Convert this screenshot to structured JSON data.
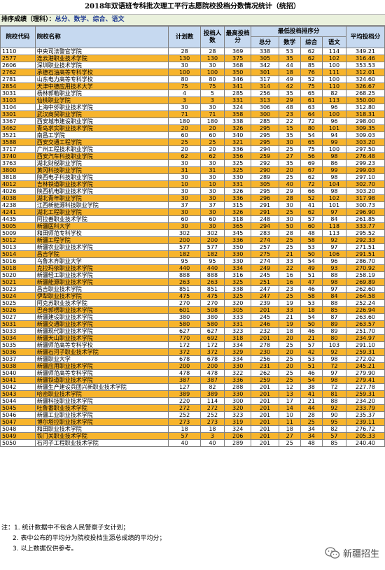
{
  "title": "2018年双语班专科批次理工平行志愿院校投档分数情况统计（统招）",
  "sort_label": "排序成绩（理科）：",
  "sort_value": "总分、数学、综合、语文",
  "headers": {
    "code": "院校代码",
    "name": "院校名称",
    "plan": "计划数",
    "admitted": "投档人数",
    "max": "最高投档分",
    "min_group": "最低投档排序分",
    "total": "总分",
    "math": "数学",
    "comp": "综合",
    "chinese": "语文",
    "avg": "平均投档分"
  },
  "rows": [
    {
      "code": "1110",
      "name": "中央司法警官学院",
      "plan": "28",
      "admitted": "28",
      "max": "369",
      "total": "338",
      "math": "53",
      "comp": "62",
      "chinese": "114",
      "avg": "349.21",
      "hl": false
    },
    {
      "code": "2577",
      "name": "连云港职业技术学院",
      "plan": "130",
      "admitted": "130",
      "max": "375",
      "total": "305",
      "math": "35",
      "comp": "62",
      "chinese": "102",
      "avg": "316.46",
      "hl": true
    },
    {
      "code": "2606",
      "name": "深圳职业技术学院",
      "plan": "30",
      "admitted": "30",
      "max": "368",
      "total": "342",
      "math": "44",
      "comp": "85",
      "chinese": "100",
      "avg": "353.53",
      "hl": false
    },
    {
      "code": "2762",
      "name": "承德石油高等专科学校",
      "plan": "100",
      "admitted": "100",
      "max": "350",
      "total": "301",
      "math": "18",
      "comp": "76",
      "chinese": "111",
      "avg": "312.01",
      "hl": true
    },
    {
      "code": "2781",
      "name": "山东电力高等专科学校",
      "plan": "80",
      "admitted": "80",
      "max": "346",
      "total": "317",
      "math": "49",
      "comp": "52",
      "chinese": "100",
      "avg": "324.60",
      "hl": false
    },
    {
      "code": "2854",
      "name": "天津中德应用技术大学",
      "plan": "75",
      "admitted": "75",
      "max": "341",
      "total": "314",
      "math": "42",
      "comp": "75",
      "chinese": "110",
      "avg": "326.67",
      "hl": true
    },
    {
      "code": "3031",
      "name": "杨林郭勒职业学院",
      "plan": "4",
      "admitted": "5",
      "max": "285",
      "total": "256",
      "math": "35",
      "comp": "65",
      "chinese": "82",
      "avg": "268.25",
      "hl": false
    },
    {
      "code": "3103",
      "name": "仙桃职业学院",
      "plan": "3",
      "admitted": "3",
      "max": "331",
      "total": "313",
      "math": "29",
      "comp": "61",
      "chinese": "113",
      "avg": "350.00",
      "hl": true
    },
    {
      "code": "3104",
      "name": "上海中侨职业技术学院",
      "plan": "30",
      "admitted": "30",
      "max": "324",
      "total": "306",
      "math": "48",
      "comp": "63",
      "chinese": "96",
      "avg": "312.80",
      "hl": false
    },
    {
      "code": "3301",
      "name": "武汉商贸职业学院",
      "plan": "71",
      "admitted": "71",
      "max": "358",
      "total": "300",
      "math": "23",
      "comp": "64",
      "chinese": "100",
      "avg": "318.31",
      "hl": true
    },
    {
      "code": "3367",
      "name": "西安城市建设职业学院",
      "plan": "180",
      "admitted": "180",
      "max": "338",
      "total": "285",
      "math": "22",
      "comp": "72",
      "chinese": "96",
      "avg": "298.00",
      "hl": false
    },
    {
      "code": "3462",
      "name": "青岛求实职业技术学院",
      "plan": "20",
      "admitted": "20",
      "max": "326",
      "total": "295",
      "math": "15",
      "comp": "80",
      "chinese": "101",
      "avg": "309.35",
      "hl": true
    },
    {
      "code": "3521",
      "name": "南昌工学院",
      "plan": "60",
      "admitted": "60",
      "max": "340",
      "total": "295",
      "math": "35",
      "comp": "54",
      "chinese": "94",
      "avg": "309.03",
      "hl": false
    },
    {
      "code": "3588",
      "name": "西安交通工程学院",
      "plan": "25",
      "admitted": "25",
      "max": "321",
      "total": "295",
      "math": "30",
      "comp": "65",
      "chinese": "99",
      "avg": "303.20",
      "hl": true
    },
    {
      "code": "3717",
      "name": "广州工程技术职业学院",
      "plan": "20",
      "admitted": "20",
      "max": "336",
      "total": "294",
      "math": "25",
      "comp": "75",
      "chinese": "100",
      "avg": "297.50",
      "hl": false
    },
    {
      "code": "3740",
      "name": "西安汽车科技职业学院",
      "plan": "62",
      "admitted": "62",
      "max": "356",
      "total": "259",
      "math": "27",
      "comp": "56",
      "chinese": "98",
      "avg": "276.48",
      "hl": true
    },
    {
      "code": "3763",
      "name": "湖北财税职业学院",
      "plan": "30",
      "admitted": "30",
      "max": "325",
      "total": "292",
      "math": "35",
      "comp": "69",
      "chinese": "86",
      "avg": "299.23",
      "hl": false
    },
    {
      "code": "3800",
      "name": "黄冈科技职业学院",
      "plan": "31",
      "admitted": "31",
      "max": "325",
      "total": "290",
      "math": "20",
      "comp": "67",
      "chinese": "99",
      "avg": "299.03",
      "hl": true
    },
    {
      "code": "3818",
      "name": "陕西电子科技职业学院",
      "plan": "30",
      "admitted": "30",
      "max": "330",
      "total": "289",
      "math": "25",
      "comp": "62",
      "chinese": "98",
      "avg": "297.10",
      "hl": false
    },
    {
      "code": "4012",
      "name": "吉林铁道职业技术学院",
      "plan": "10",
      "admitted": "10",
      "max": "331",
      "total": "305",
      "math": "40",
      "comp": "72",
      "chinese": "104",
      "avg": "302.70",
      "hl": true
    },
    {
      "code": "4026",
      "name": "陕西机电职业技术学院",
      "plan": "30",
      "admitted": "30",
      "max": "326",
      "total": "295",
      "math": "29",
      "comp": "66",
      "chinese": "98",
      "avg": "303.20",
      "hl": false
    },
    {
      "code": "4038",
      "name": "湖北青年职业学院",
      "plan": "30",
      "admitted": "30",
      "max": "336",
      "total": "296",
      "math": "28",
      "comp": "52",
      "chinese": "102",
      "avg": "317.98",
      "hl": true
    },
    {
      "code": "4238",
      "name": "江西新能源科技职业学院",
      "plan": "37",
      "admitted": "37",
      "max": "315",
      "total": "291",
      "math": "30",
      "comp": "41",
      "chinese": "101",
      "avg": "300.73",
      "hl": false
    },
    {
      "code": "4241",
      "name": "湖北工程职业学院",
      "plan": "30",
      "admitted": "30",
      "max": "326",
      "total": "291",
      "math": "25",
      "comp": "62",
      "chinese": "97",
      "avg": "296.90",
      "hl": true
    },
    {
      "code": "4435",
      "name": "阿拉善职业技术学院",
      "plan": "60",
      "admitted": "60",
      "max": "318",
      "total": "248",
      "math": "30",
      "comp": "57",
      "chinese": "84",
      "avg": "261.85",
      "hl": false
    },
    {
      "code": "5005",
      "name": "新疆医科大学",
      "plan": "30",
      "admitted": "30",
      "max": "365",
      "total": "294",
      "math": "50",
      "comp": "60",
      "chinese": "118",
      "avg": "333.77",
      "hl": true
    },
    {
      "code": "5009",
      "name": "和田师范专科学校",
      "plan": "302",
      "admitted": "302",
      "max": "345",
      "total": "283",
      "math": "28",
      "comp": "48",
      "chinese": "113",
      "avg": "295.52",
      "hl": false
    },
    {
      "code": "5012",
      "name": "新疆工程学院",
      "plan": "200",
      "admitted": "200",
      "max": "336",
      "total": "274",
      "math": "25",
      "comp": "58",
      "chinese": "92",
      "avg": "292.33",
      "hl": true
    },
    {
      "code": "5013",
      "name": "新疆农业职业技术学院",
      "plan": "577",
      "admitted": "577",
      "max": "350",
      "total": "257",
      "math": "25",
      "comp": "53",
      "chinese": "97",
      "avg": "271.51",
      "hl": false
    },
    {
      "code": "5014",
      "name": "昌吉学院",
      "plan": "182",
      "admitted": "182",
      "max": "330",
      "total": "275",
      "math": "21",
      "comp": "50",
      "chinese": "106",
      "avg": "291.51",
      "hl": true
    },
    {
      "code": "5016",
      "name": "乌鲁木齐职业大学",
      "plan": "95",
      "admitted": "95",
      "max": "330",
      "total": "274",
      "math": "33",
      "comp": "54",
      "chinese": "96",
      "avg": "286.70",
      "hl": false
    },
    {
      "code": "5018",
      "name": "克拉玛依职业技术学院",
      "plan": "440",
      "admitted": "440",
      "max": "334",
      "total": "249",
      "math": "22",
      "comp": "49",
      "chinese": "93",
      "avg": "270.92",
      "hl": true
    },
    {
      "code": "5020",
      "name": "新疆轻工职业技术学院",
      "plan": "888",
      "admitted": "888",
      "max": "316",
      "total": "245",
      "math": "16",
      "comp": "51",
      "chinese": "88",
      "avg": "258.19",
      "hl": false
    },
    {
      "code": "5021",
      "name": "新疆能源职业技术学院",
      "plan": "263",
      "admitted": "263",
      "max": "325",
      "total": "251",
      "math": "16",
      "comp": "47",
      "chinese": "98",
      "avg": "269.89",
      "hl": true
    },
    {
      "code": "5023",
      "name": "昌吉职业技术学院",
      "plan": "851",
      "admitted": "851",
      "max": "338",
      "total": "247",
      "math": "23",
      "comp": "46",
      "chinese": "97",
      "avg": "262.60",
      "hl": false
    },
    {
      "code": "5024",
      "name": "伊犁职业技术学院",
      "plan": "475",
      "admitted": "475",
      "max": "325",
      "total": "247",
      "math": "25",
      "comp": "58",
      "chinese": "84",
      "avg": "264.58",
      "hl": true
    },
    {
      "code": "5025",
      "name": "阿克苏职业技术学院",
      "plan": "270",
      "admitted": "270",
      "max": "320",
      "total": "239",
      "math": "19",
      "comp": "53",
      "chinese": "88",
      "avg": "252.24",
      "hl": false
    },
    {
      "code": "5026",
      "name": "巴音郭楞职业技术学院",
      "plan": "601",
      "admitted": "508",
      "max": "305",
      "total": "201",
      "math": "33",
      "comp": "18",
      "chinese": "85",
      "avg": "226.94",
      "hl": true
    },
    {
      "code": "5027",
      "name": "新疆建设职业技术学院",
      "plan": "380",
      "admitted": "380",
      "max": "333",
      "total": "245",
      "math": "21",
      "comp": "54",
      "chinese": "87",
      "avg": "263.60",
      "hl": false
    },
    {
      "code": "5031",
      "name": "新疆交通职业技术学院",
      "plan": "580",
      "admitted": "580",
      "max": "331",
      "total": "246",
      "math": "19",
      "comp": "50",
      "chinese": "89",
      "avg": "263.57",
      "hl": true
    },
    {
      "code": "5033",
      "name": "新疆现代职业技术学院",
      "plan": "627",
      "admitted": "627",
      "max": "323",
      "total": "232",
      "math": "18",
      "comp": "46",
      "chinese": "89",
      "avg": "251.70",
      "hl": false
    },
    {
      "code": "5034",
      "name": "新疆天山职业技术学院",
      "plan": "770",
      "admitted": "692",
      "max": "318",
      "total": "201",
      "math": "20",
      "comp": "21",
      "chinese": "80",
      "avg": "234.97",
      "hl": true
    },
    {
      "code": "5035",
      "name": "新疆师范高等专科学校",
      "plan": "172",
      "admitted": "172",
      "max": "334",
      "total": "278",
      "math": "25",
      "comp": "57",
      "chinese": "103",
      "avg": "291.10",
      "hl": false
    },
    {
      "code": "5036",
      "name": "新疆石河子职业技术学院",
      "plan": "372",
      "admitted": "372",
      "max": "329",
      "total": "230",
      "math": "20",
      "comp": "42",
      "chinese": "92",
      "avg": "259.31",
      "hl": true
    },
    {
      "code": "5037",
      "name": "新疆职业大学",
      "plan": "678",
      "admitted": "678",
      "max": "334",
      "total": "256",
      "math": "25",
      "comp": "53",
      "chinese": "98",
      "avg": "272.02",
      "hl": false
    },
    {
      "code": "5038",
      "name": "新疆应用职业技术学院",
      "plan": "200",
      "admitted": "200",
      "max": "330",
      "total": "231",
      "math": "20",
      "comp": "51",
      "chinese": "72",
      "avg": "245.21",
      "hl": true
    },
    {
      "code": "5040",
      "name": "新疆师范高等专科学院",
      "plan": "478",
      "admitted": "478",
      "max": "322",
      "total": "262",
      "math": "25",
      "comp": "46",
      "chinese": "97",
      "avg": "279.90",
      "hl": false
    },
    {
      "code": "5041",
      "name": "新疆铁道职业技术学院",
      "plan": "387",
      "admitted": "387",
      "max": "336",
      "total": "259",
      "math": "25",
      "comp": "54",
      "chinese": "98",
      "avg": "279.41",
      "hl": true
    },
    {
      "code": "5042",
      "name": "新疆生产建设兵团兴新职业技术学院",
      "plan": "127",
      "admitted": "82",
      "max": "288",
      "total": "201",
      "math": "12",
      "comp": "38",
      "chinese": "72",
      "avg": "227.78",
      "hl": false
    },
    {
      "code": "5043",
      "name": "哈密职业技术学院",
      "plan": "389",
      "admitted": "389",
      "max": "330",
      "total": "201",
      "math": "13",
      "comp": "41",
      "chinese": "81",
      "avg": "259.31",
      "hl": true
    },
    {
      "code": "5044",
      "name": "新疆科技职业技术学院",
      "plan": "220",
      "admitted": "114",
      "max": "300",
      "total": "201",
      "math": "17",
      "comp": "21",
      "chinese": "88",
      "avg": "234.20",
      "hl": false
    },
    {
      "code": "5045",
      "name": "吐鲁番职业技术学院",
      "plan": "272",
      "admitted": "272",
      "max": "320",
      "total": "201",
      "math": "14",
      "comp": "44",
      "chinese": "92",
      "avg": "233.79",
      "hl": true
    },
    {
      "code": "5046",
      "name": "新疆工业职业技术学院",
      "plan": "252",
      "admitted": "252",
      "max": "323",
      "total": "201",
      "math": "10",
      "comp": "28",
      "chinese": "90",
      "avg": "235.37",
      "hl": false
    },
    {
      "code": "5047",
      "name": "博尔塔拉职业技术学院",
      "plan": "273",
      "admitted": "273",
      "max": "319",
      "total": "201",
      "math": "11",
      "comp": "25",
      "chinese": "95",
      "avg": "239.11",
      "hl": true
    },
    {
      "code": "5048",
      "name": "和田职业技术学院",
      "plan": "18",
      "admitted": "18",
      "max": "324",
      "total": "201",
      "math": "18",
      "comp": "34",
      "chinese": "82",
      "avg": "276.72",
      "hl": false
    },
    {
      "code": "5049",
      "name": "铁门关职业技术学院",
      "plan": "57",
      "admitted": "3",
      "max": "206",
      "total": "201",
      "math": "27",
      "comp": "34",
      "chinese": "57",
      "avg": "205.33",
      "hl": true
    },
    {
      "code": "5050",
      "name": "石河子工程职业技术学院",
      "plan": "40",
      "admitted": "40",
      "max": "289",
      "total": "201",
      "math": "25",
      "comp": "48",
      "chinese": "85",
      "avg": "240.40",
      "hl": false
    }
  ],
  "notes": [
    "注：1. 统计数据中不包含人民警察子女计划；",
    "2. 表中公布的平均分为院校投档生源总成绩的平均分；",
    "3. 以上数据仅供参考。"
  ],
  "watermark": "新疆招生"
}
